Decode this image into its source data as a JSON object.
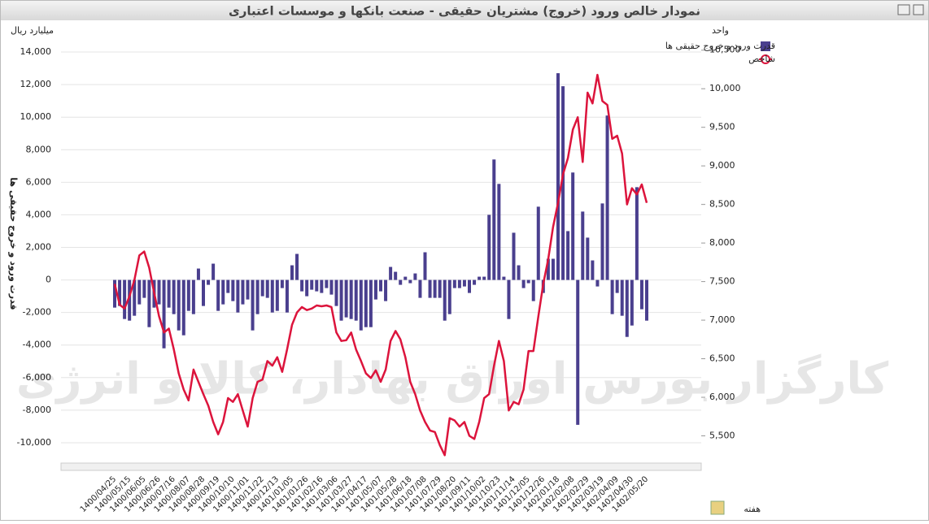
{
  "chart_data": {
    "type": "bar-line",
    "title": "نمودار خالص ورود (خروج) مشتریان حقیقی - صنعت بانکها و موسسات اعتباری",
    "y_unit": "میلیارد ریال",
    "y2_unit": "واحد",
    "y_label": "قدرت ورود و خروج حقیقی ها",
    "x_label": "هفته",
    "watermark": "کارگزار بورس اوراق بهادار، کالا و انرژی",
    "legend": "top-right",
    "grid": true,
    "categories": [
      "1400/04/25",
      null,
      null,
      "1400/05/15",
      null,
      null,
      "1400/06/05",
      null,
      null,
      "1400/06/26",
      null,
      null,
      "1400/07/16",
      null,
      null,
      "1400/08/07",
      null,
      null,
      "1400/08/28",
      null,
      null,
      "1400/09/19",
      null,
      null,
      "1400/10/10",
      null,
      null,
      "1400/11/01",
      null,
      null,
      "1400/11/22",
      null,
      null,
      "1400/12/13",
      null,
      null,
      "1401/01/05",
      null,
      null,
      "1401/01/26",
      null,
      null,
      "1401/02/16",
      null,
      null,
      "1401/03/06",
      null,
      null,
      "1401/03/27",
      null,
      null,
      "1401/04/17",
      null,
      null,
      "1401/05/07",
      null,
      null,
      "1401/05/28",
      null,
      null,
      "1401/06/18",
      null,
      null,
      "1401/07/08",
      null,
      null,
      "1401/07/29",
      null,
      null,
      "1401/08/20",
      null,
      null,
      "1401/09/11",
      null,
      null,
      "1401/10/02",
      null,
      null,
      "1401/10/23",
      null,
      null,
      "1401/11/14",
      null,
      null,
      "1401/12/05",
      null,
      null,
      "1401/12/26",
      null,
      null,
      "1402/01/18",
      null,
      null,
      "1402/02/08",
      null,
      null,
      "1402/02/29",
      null,
      null,
      "1402/03/19",
      null,
      null,
      "1402/04/09",
      null,
      null,
      "1402/04/30",
      null,
      null,
      "1402/05/20"
    ],
    "ylim": [
      -11000,
      15300
    ],
    "yticks": [
      {
        "value": -10000,
        "label": "-10,000"
      },
      {
        "value": -8000,
        "label": "-8,000"
      },
      {
        "value": -6000,
        "label": "-6,000"
      },
      {
        "value": -4000,
        "label": "-4,000"
      },
      {
        "value": -2000,
        "label": "-2,000"
      },
      0,
      {
        "value": 2000,
        "label": "2,000"
      },
      {
        "value": 4000,
        "label": "4,000"
      },
      {
        "value": 6000,
        "label": "6,000"
      },
      {
        "value": 8000,
        "label": "8,000"
      },
      {
        "value": 10000,
        "label": "10,000"
      },
      {
        "value": 12000,
        "label": "12,000"
      },
      {
        "value": 14000,
        "label": "14,000"
      }
    ],
    "y2lim": [
      5200,
      10750
    ],
    "y2ticks": [
      {
        "value": 5500,
        "label": "5,500"
      },
      {
        "value": 6000,
        "label": "6,000"
      },
      {
        "value": 6500,
        "label": "6,500"
      },
      {
        "value": 7000,
        "label": "7,000"
      },
      {
        "value": 7500,
        "label": "7,500"
      },
      {
        "value": 8000,
        "label": "8,000"
      },
      {
        "value": 8500,
        "label": "8,500"
      },
      {
        "value": 9000,
        "label": "9,000"
      },
      {
        "value": 9500,
        "label": "9,500"
      },
      {
        "value": 10000,
        "label": "10,000"
      },
      {
        "value": 10500,
        "label": "10,500"
      }
    ],
    "series": [
      {
        "name": "قدرت ورود و خروج حقیقی ها",
        "type": "bar",
        "color": "#4a3f8e",
        "values": [
          -1700,
          -1600,
          -2400,
          -2500,
          -2200,
          -1500,
          -1100,
          -2900,
          -1700,
          -1500,
          -4200,
          -1700,
          -2100,
          -3100,
          -3400,
          -1900,
          -2100,
          700,
          -1600,
          -300,
          1000,
          -1900,
          -1500,
          -800,
          -1300,
          -2000,
          -1500,
          -1200,
          -3100,
          -2100,
          -1000,
          -1100,
          -2000,
          -1900,
          -500,
          -2000,
          900,
          1600,
          -700,
          -1000,
          -600,
          -700,
          -800,
          -500,
          -900,
          -1600,
          -2500,
          -2300,
          -2400,
          -2500,
          -3100,
          -2900,
          -2900,
          -1200,
          -700,
          -1300,
          800,
          500,
          -300,
          200,
          -200,
          400,
          -1100,
          1700,
          -1100,
          -1100,
          -1100,
          -2500,
          -2100,
          -500,
          -500,
          -400,
          -800,
          -300,
          200,
          200,
          4000,
          7400,
          5900,
          200,
          -2400,
          2900,
          900,
          -500,
          -200,
          -1300,
          4500,
          -800,
          1300,
          1300,
          12700,
          11900,
          3000,
          6600,
          -8900,
          4200,
          2600,
          1200,
          -400,
          4700,
          10100,
          -2100,
          -800,
          -2200,
          -3500,
          -2800,
          5700,
          -1800,
          -2500
        ]
      },
      {
        "name": "شاخص",
        "type": "line",
        "axis": "y2",
        "color": "#dc143c",
        "values": [
          7470,
          7200,
          7150,
          7310,
          7520,
          7840,
          7890,
          7680,
          7360,
          7050,
          6840,
          6890,
          6620,
          6310,
          6100,
          5960,
          6360,
          6200,
          6040,
          5890,
          5680,
          5520,
          5680,
          5990,
          5940,
          6040,
          5830,
          5620,
          5990,
          6200,
          6230,
          6470,
          6410,
          6520,
          6330,
          6620,
          6940,
          7100,
          7170,
          7130,
          7150,
          7190,
          7180,
          7190,
          7170,
          6840,
          6730,
          6740,
          6840,
          6620,
          6470,
          6310,
          6250,
          6350,
          6200,
          6360,
          6730,
          6860,
          6750,
          6520,
          6200,
          6040,
          5830,
          5680,
          5570,
          5550,
          5380,
          5250,
          5730,
          5700,
          5620,
          5680,
          5500,
          5460,
          5680,
          5990,
          6040,
          6410,
          6730,
          6470,
          5830,
          5940,
          5910,
          6100,
          6600,
          6600,
          7050,
          7470,
          7790,
          8210,
          8520,
          8890,
          9100,
          9470,
          9630,
          9050,
          9950,
          9810,
          10180,
          9840,
          9790,
          9350,
          9390,
          9160,
          8500,
          8710,
          8630,
          8760,
          8520
        ]
      }
    ]
  }
}
